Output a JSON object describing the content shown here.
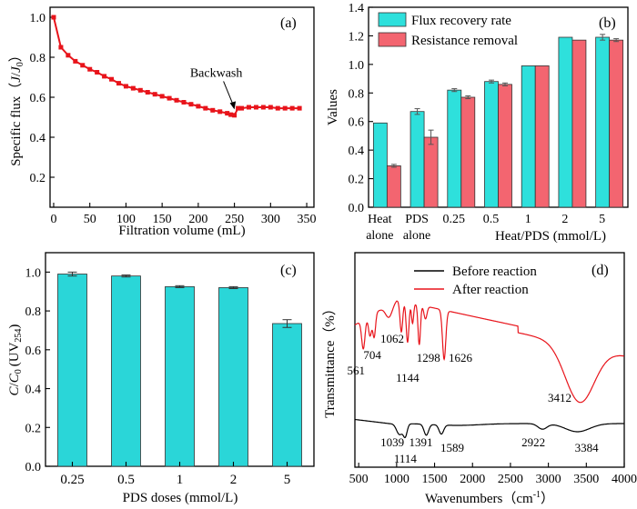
{
  "chart_data": [
    {
      "panel": "(a)",
      "type": "line",
      "ylabel_prefix": "Specific flux（",
      "ylabel_j": "J",
      "ylabel_slash": "/",
      "ylabel_j0": "J",
      "ylabel_sub": "0",
      "ylabel_suffix": "）",
      "xlabel": "Filtration volume (mL)",
      "xlim": [
        -5,
        360
      ],
      "ylim": [
        0.05,
        1.05
      ],
      "xticks": [
        0,
        50,
        100,
        150,
        200,
        250,
        300,
        350
      ],
      "yticks": [
        0.2,
        0.4,
        0.6,
        0.8,
        1.0
      ],
      "annotation": "Backwash",
      "annotation_x": 250,
      "annotation_y": 0.53,
      "color": "#e8141b",
      "x": [
        0,
        10,
        20,
        30,
        40,
        50,
        60,
        70,
        80,
        90,
        100,
        110,
        120,
        130,
        140,
        150,
        160,
        170,
        180,
        190,
        200,
        210,
        220,
        230,
        240,
        245,
        250,
        255,
        260,
        270,
        280,
        290,
        300,
        310,
        320,
        330,
        340
      ],
      "y": [
        1.0,
        0.85,
        0.81,
        0.78,
        0.76,
        0.74,
        0.725,
        0.705,
        0.69,
        0.67,
        0.655,
        0.645,
        0.635,
        0.625,
        0.615,
        0.605,
        0.595,
        0.585,
        0.575,
        0.565,
        0.555,
        0.545,
        0.535,
        0.528,
        0.52,
        0.513,
        0.51,
        0.545,
        0.545,
        0.55,
        0.55,
        0.55,
        0.55,
        0.545,
        0.545,
        0.545,
        0.545
      ]
    },
    {
      "panel": "(b)",
      "type": "bar",
      "ylabel": "Values",
      "xlabel_group": "Heat/PDS (mmol/L)",
      "ylim": [
        0,
        1.4
      ],
      "yticks": [
        0.0,
        0.2,
        0.4,
        0.6,
        0.8,
        1.0,
        1.2,
        1.4
      ],
      "categories": [
        "Heat alone",
        "PDS alone",
        "0.25",
        "0.5",
        "1",
        "2",
        "5"
      ],
      "category_lines": [
        [
          "Heat",
          "alone"
        ],
        [
          "PDS",
          "alone"
        ],
        [
          "0.25"
        ],
        [
          "0.5"
        ],
        [
          "1"
        ],
        [
          "2"
        ],
        [
          "5"
        ]
      ],
      "series": [
        {
          "name": "Flux recovery rate",
          "color": "#2ee0dc",
          "values": [
            0.59,
            0.67,
            0.82,
            0.88,
            0.99,
            1.19,
            1.19
          ],
          "errors": [
            0.0,
            0.02,
            0.01,
            0.01,
            0.0,
            0.0,
            0.02
          ]
        },
        {
          "name": "Resistance removal",
          "color": "#f36570",
          "values": [
            0.29,
            0.49,
            0.77,
            0.86,
            0.99,
            1.17,
            1.17
          ],
          "errors": [
            0.01,
            0.05,
            0.01,
            0.01,
            0.0,
            0.0,
            0.01
          ]
        }
      ]
    },
    {
      "panel": "(c)",
      "type": "bar",
      "ylabel_c": "C",
      "ylabel_slash": "/",
      "ylabel_c0": "C",
      "ylabel_sub0": "0",
      "ylabel_uv": "(UV",
      "ylabel_sub254": "254",
      "ylabel_close": ")",
      "xlabel": "PDS doses (mmol/L)",
      "ylim": [
        0,
        1.1
      ],
      "yticks": [
        0.0,
        0.2,
        0.4,
        0.6,
        0.8,
        1.0
      ],
      "categories": [
        "0.25",
        "0.5",
        "1",
        "2",
        "5"
      ],
      "color": "#2ad6d8",
      "values": [
        0.99,
        0.98,
        0.925,
        0.92,
        0.735
      ],
      "errors": [
        0.01,
        0.005,
        0.005,
        0.005,
        0.02
      ]
    },
    {
      "panel": "(d)",
      "type": "line",
      "ylabel": "Transmittance（%）",
      "xlabel_main": "Wavenumbers（cm",
      "xlabel_sup": "-1",
      "xlabel_close": "）",
      "xlim": [
        450,
        4000
      ],
      "xticks": [
        500,
        1000,
        1500,
        2000,
        2500,
        3000,
        3500,
        4000
      ],
      "series": [
        {
          "name": "Before reaction",
          "color": "#000000"
        },
        {
          "name": "After reaction",
          "color": "#e8141b"
        }
      ],
      "peak_labels_after": [
        {
          "label": "561",
          "wavenumber": 561
        },
        {
          "label": "704",
          "wavenumber": 704
        },
        {
          "label": "1062",
          "wavenumber": 1062
        },
        {
          "label": "1144",
          "wavenumber": 1144
        },
        {
          "label": "1298",
          "wavenumber": 1298
        },
        {
          "label": "1626",
          "wavenumber": 1626
        },
        {
          "label": "3412",
          "wavenumber": 3412
        }
      ],
      "peak_labels_before": [
        {
          "label": "1039",
          "wavenumber": 1039
        },
        {
          "label": "1114",
          "wavenumber": 1114
        },
        {
          "label": "1391",
          "wavenumber": 1391
        },
        {
          "label": "1589",
          "wavenumber": 1589
        },
        {
          "label": "2922",
          "wavenumber": 2922
        },
        {
          "label": "3384",
          "wavenumber": 3384
        }
      ]
    }
  ]
}
